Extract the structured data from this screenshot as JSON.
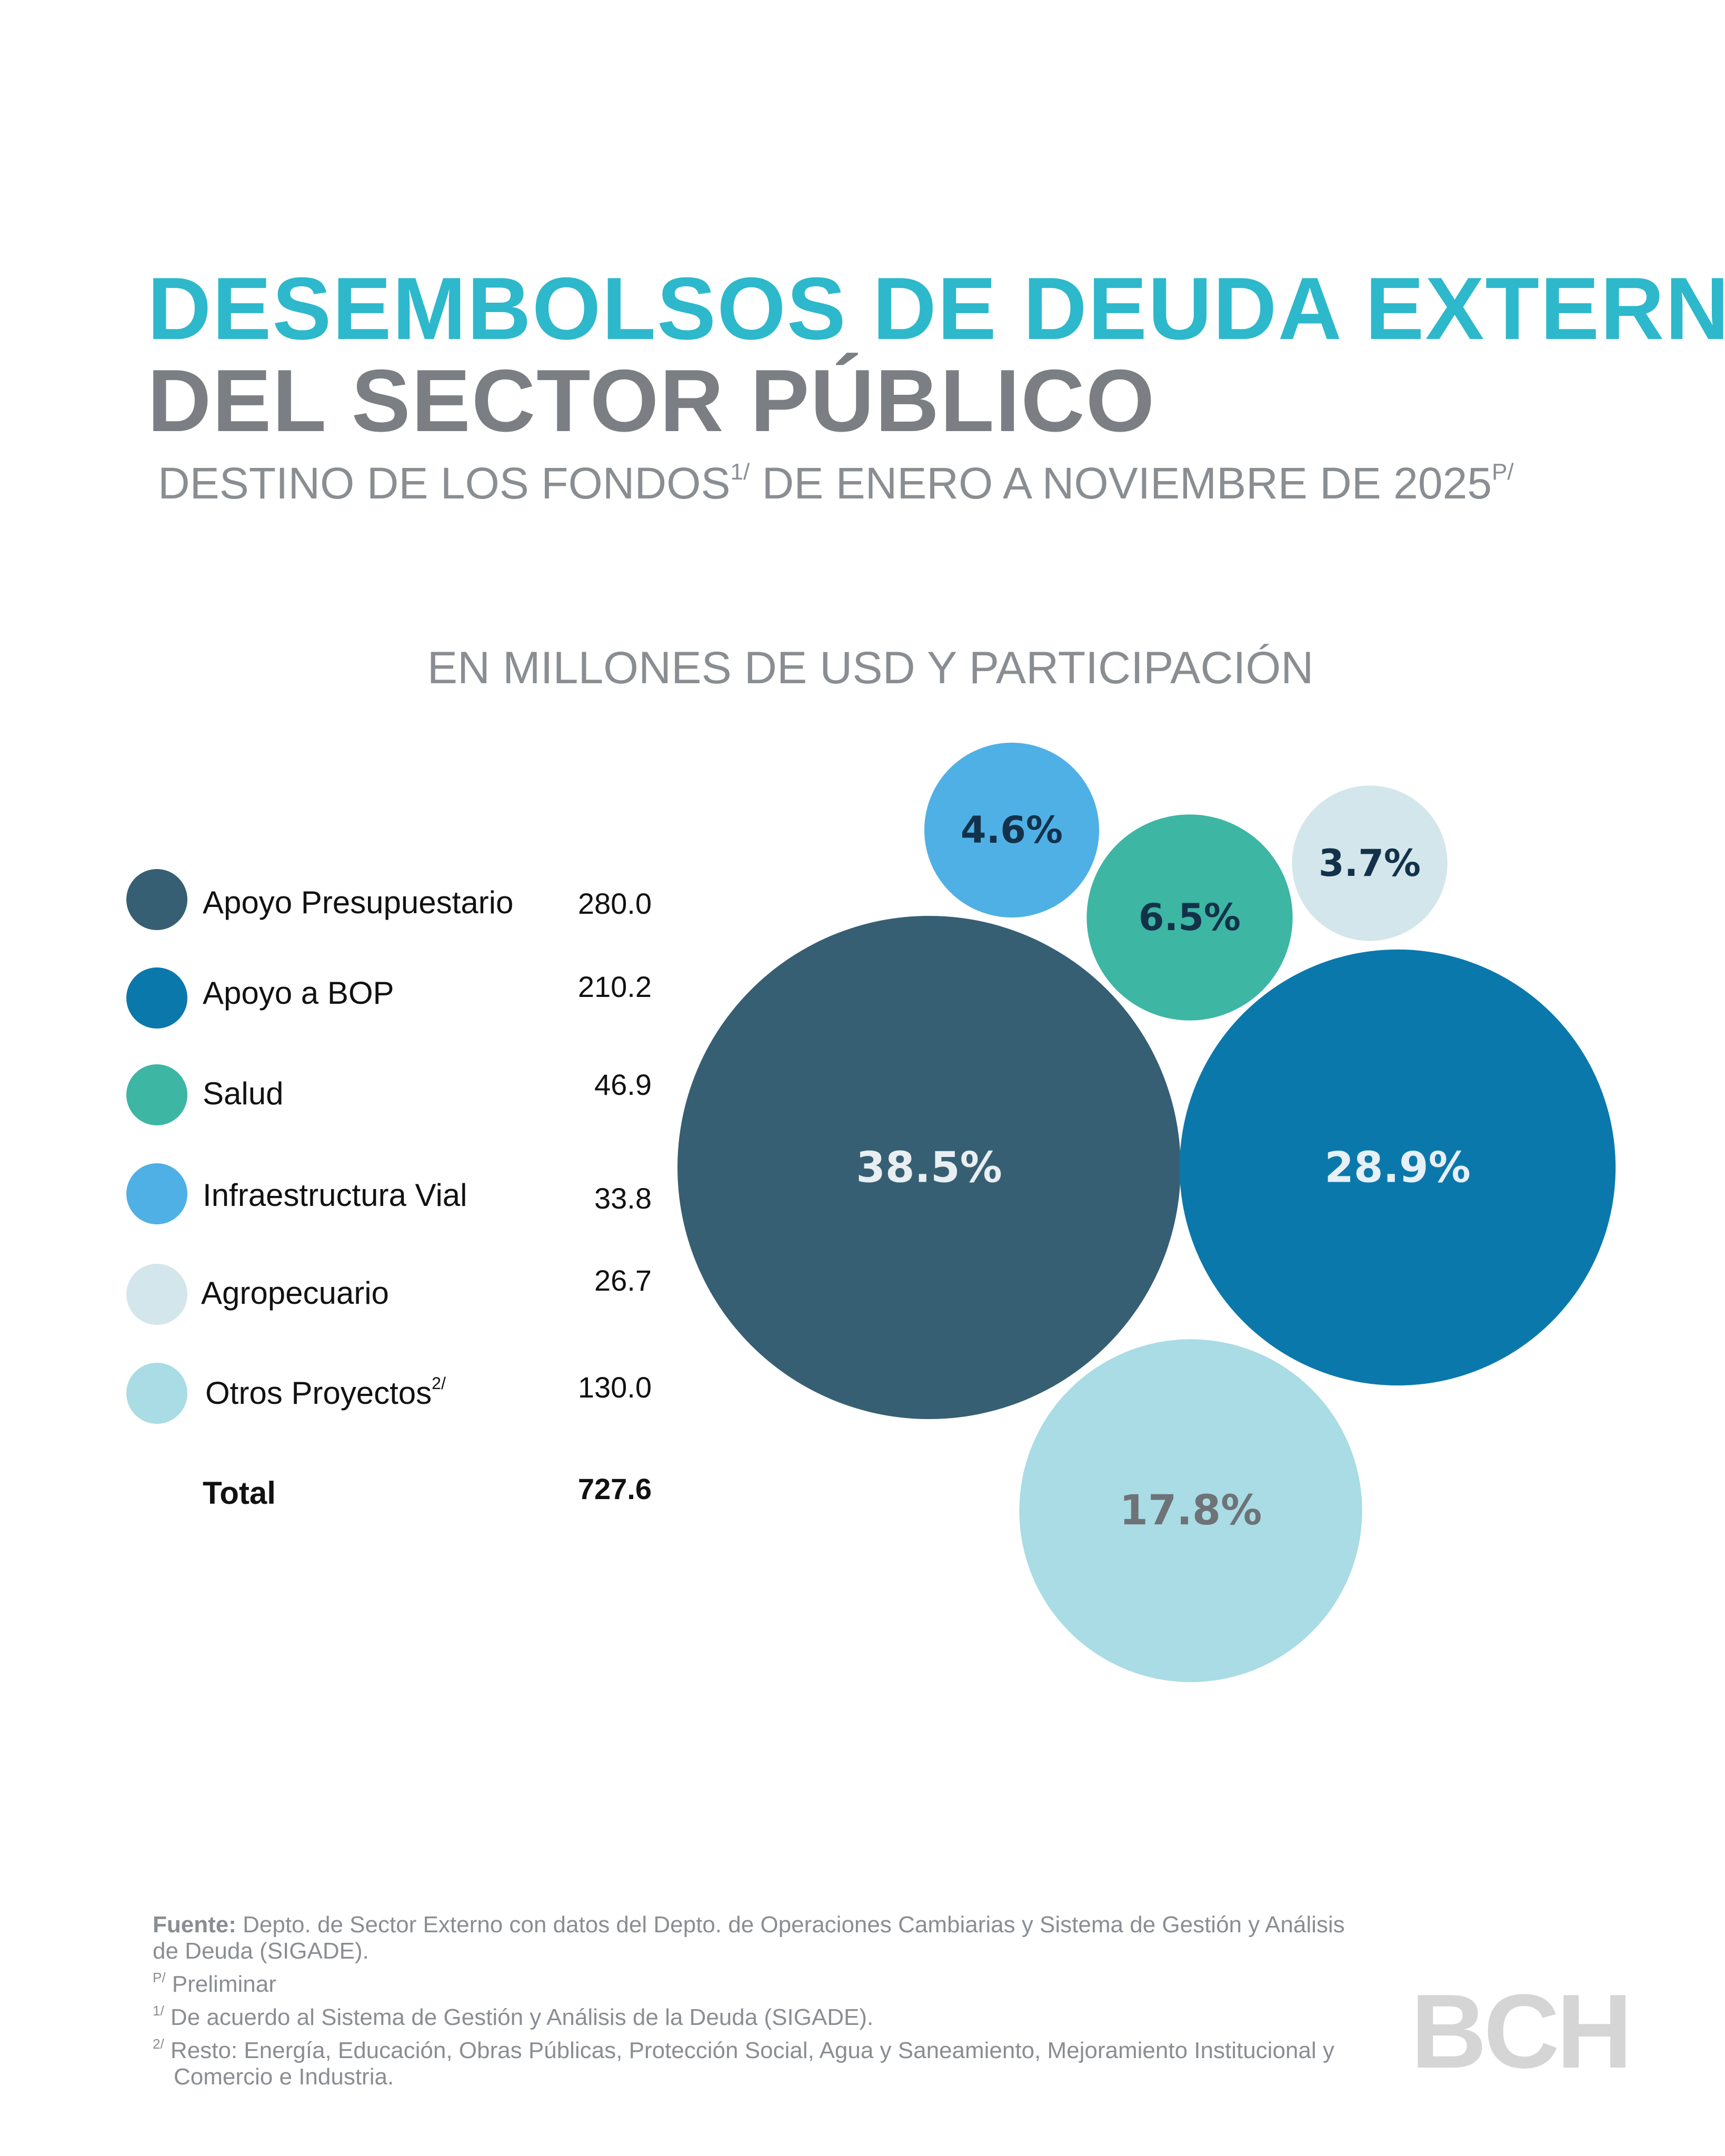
{
  "title_line1": "DESEMBOLSOS DE DEUDA EXTERNA",
  "title_line2": "DEL SECTOR PÚBLICO",
  "subtitle": {
    "part1": "DESTINO DE LOS FONDOS",
    "sup1": "1/",
    "part2": " DE ENERO A NOVIEMBRE DE 2025",
    "sup2": "P/"
  },
  "units_label": "EN  MILLONES DE USD Y PARTICIPACIÓN",
  "colors": {
    "title_accent": "#2db8cb",
    "title_gray": "#7b7f83",
    "apoyo_presupuestario": "#375f73",
    "apoyo_bop": "#0b78ac",
    "salud": "#3db6a4",
    "infraestructura_vial": "#4fb0e6",
    "agropecuario": "#d3e6eb",
    "otros_proyectos": "#a9dce4"
  },
  "legend": [
    {
      "label": "Apoyo Presupuestario",
      "sup": "",
      "value": "280.0"
    },
    {
      "label": "Apoyo a BOP",
      "sup": "",
      "value": "210.2"
    },
    {
      "label": "Salud",
      "sup": "",
      "value": "46.9"
    },
    {
      "label": "Infraestructura Vial",
      "sup": "",
      "value": "33.8"
    },
    {
      "label": "Agropecuario",
      "sup": "",
      "value": "26.7"
    },
    {
      "label": "Otros Proyectos",
      "sup": "2/",
      "value": "130.0"
    }
  ],
  "total": {
    "label": "Total",
    "value": "727.6"
  },
  "chart_data": {
    "type": "bubble",
    "title": "DESEMBOLSOS DE DEUDA EXTERNA DEL SECTOR PÚBLICO",
    "subtitle": "DESTINO DE LOS FONDOS DE ENERO A NOVIEMBRE DE 2025",
    "unit": "EN  MILLONES DE USD Y PARTICIPACIÓN",
    "categories": [
      "Apoyo Presupuestario",
      "Apoyo a BOP",
      "Salud",
      "Infraestructura Vial",
      "Agropecuario",
      "Otros Proyectos"
    ],
    "values": [
      280.0,
      210.2,
      46.9,
      33.8,
      26.7,
      130.0
    ],
    "shares": [
      "38.5%",
      "28.9%",
      "6.5%",
      "4.6%",
      "3.7%",
      "17.8%"
    ],
    "total": 727.6
  },
  "footer": {
    "source_label": "Fuente:",
    "source_text": " Depto. de Sector Externo con datos del Depto. de Operaciones Cambiarias y Sistema de Gestión y Análisis",
    "source_text2": "de Deuda (SIGADE).",
    "note_p_mark": "P/",
    "note_p": " Preliminar",
    "note1_mark": "1/",
    "note1": " De acuerdo al Sistema de Gestión y Análisis de la Deuda (SIGADE).",
    "note2_mark": "2/",
    "note2": " Resto: Energía,  Educación, Obras Públicas, Protección Social, Agua y Saneamiento, Mejoramiento Institucional y",
    "note2b": "Comercio e Industria."
  },
  "logo": "BCH"
}
